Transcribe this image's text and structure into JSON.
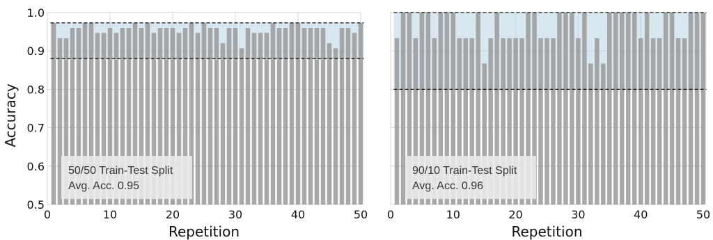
{
  "figure": {
    "ylabel": "Accuracy",
    "colors": {
      "bar": "#999999",
      "band": "#b9d3e6",
      "band_opacity": 0.55,
      "grid": "#d4d4d4",
      "dashed": "#111111",
      "textbox": "#e9e9e9"
    }
  },
  "chart_data": [
    {
      "type": "bar",
      "title": "",
      "xlabel": "Repetition",
      "ylabel": "Accuracy",
      "xlim": [
        0,
        50
      ],
      "ylim": [
        0.5,
        1.0
      ],
      "xticks": [
        "0",
        "10",
        "20",
        "30",
        "40",
        "50"
      ],
      "yticks": [
        "0.5",
        "0.6",
        "0.7",
        "0.8",
        "0.9",
        "1.0"
      ],
      "grid": true,
      "band": [
        0.88,
        0.973
      ],
      "annotation_lines": [
        "50/50 Train-Test Split",
        "Avg. Acc. 0.95"
      ],
      "x": [
        1,
        2,
        3,
        4,
        5,
        6,
        7,
        8,
        9,
        10,
        11,
        12,
        13,
        14,
        15,
        16,
        17,
        18,
        19,
        20,
        21,
        22,
        23,
        24,
        25,
        26,
        27,
        28,
        29,
        30,
        31,
        32,
        33,
        34,
        35,
        36,
        37,
        38,
        39,
        40,
        41,
        42,
        43,
        44,
        45,
        46,
        47,
        48,
        49,
        50
      ],
      "values": [
        0.973,
        0.933,
        0.933,
        0.96,
        0.96,
        0.973,
        0.973,
        0.947,
        0.947,
        0.96,
        0.947,
        0.96,
        0.96,
        0.973,
        0.96,
        0.973,
        0.947,
        0.96,
        0.96,
        0.96,
        0.947,
        0.96,
        0.973,
        0.947,
        0.973,
        0.96,
        0.96,
        0.92,
        0.96,
        0.96,
        0.907,
        0.96,
        0.947,
        0.947,
        0.947,
        0.973,
        0.96,
        0.96,
        0.973,
        0.973,
        0.96,
        0.96,
        0.96,
        0.96,
        0.92,
        0.907,
        0.96,
        0.96,
        0.947,
        0.973
      ]
    },
    {
      "type": "bar",
      "title": "",
      "xlabel": "Repetition",
      "ylabel": "",
      "xlim": [
        0,
        50
      ],
      "ylim": [
        0.5,
        1.0
      ],
      "xticks": [
        "0",
        "10",
        "20",
        "30",
        "40",
        "50"
      ],
      "yticks": [],
      "grid": true,
      "band": [
        0.8,
        1.0
      ],
      "annotation_lines": [
        "90/10 Train-Test Split",
        "Avg. Acc. 0.96"
      ],
      "x": [
        1,
        2,
        3,
        4,
        5,
        6,
        7,
        8,
        9,
        10,
        11,
        12,
        13,
        14,
        15,
        16,
        17,
        18,
        19,
        20,
        21,
        22,
        23,
        24,
        25,
        26,
        27,
        28,
        29,
        30,
        31,
        32,
        33,
        34,
        35,
        36,
        37,
        38,
        39,
        40,
        41,
        42,
        43,
        44,
        45,
        46,
        47,
        48,
        49,
        50
      ],
      "values": [
        0.933,
        1.0,
        1.0,
        0.933,
        1.0,
        1.0,
        0.933,
        1.0,
        1.0,
        1.0,
        0.933,
        0.933,
        0.933,
        1.0,
        0.867,
        0.933,
        1.0,
        0.933,
        0.933,
        0.933,
        0.933,
        1.0,
        1.0,
        0.933,
        0.933,
        0.933,
        1.0,
        1.0,
        1.0,
        0.933,
        1.0,
        0.867,
        0.933,
        0.867,
        1.0,
        1.0,
        1.0,
        1.0,
        1.0,
        0.933,
        1.0,
        0.933,
        0.933,
        1.0,
        1.0,
        0.933,
        0.933,
        1.0,
        1.0,
        1.0
      ]
    }
  ]
}
